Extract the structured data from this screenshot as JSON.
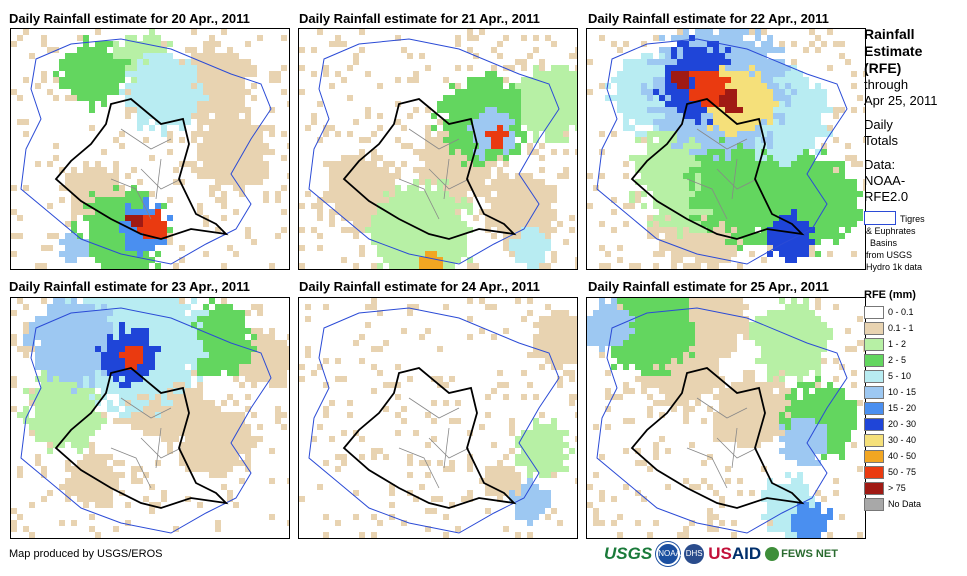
{
  "panels": [
    {
      "title": "Daily Rainfall estimate for 20 Apr., 2011"
    },
    {
      "title": "Daily Rainfall estimate for 21 Apr., 2011"
    },
    {
      "title": "Daily Rainfall estimate for 22 Apr., 2011"
    },
    {
      "title": "Daily Rainfall estimate for 23 Apr., 2011"
    },
    {
      "title": "Daily Rainfall estimate for 24 Apr., 2011"
    },
    {
      "title": "Daily Rainfall estimate for 25 Apr., 2011"
    }
  ],
  "side": {
    "title_lines": [
      "Rainfall",
      "Estimate",
      "(RFE)"
    ],
    "sub_lines": [
      "through",
      "Apr 25, 2011"
    ],
    "totals_lines": [
      "Daily",
      "Totals"
    ],
    "data_lines": [
      "Data:",
      "NOAA-",
      "RFE2.0"
    ],
    "basin_lines": [
      "Tigres",
      "& Euphrates",
      "Basins",
      "from USGS",
      "Hydro 1k data"
    ]
  },
  "legend": {
    "title": "RFE (mm)",
    "items": [
      {
        "label": "0 - 0.1",
        "color": "#ffffff"
      },
      {
        "label": "0.1 - 1",
        "color": "#e8d3b1"
      },
      {
        "label": "1 - 2",
        "color": "#b7f0a5"
      },
      {
        "label": "2 - 5",
        "color": "#63d65f"
      },
      {
        "label": "5 - 10",
        "color": "#b8ecf2"
      },
      {
        "label": "10 - 15",
        "color": "#9dc8f2"
      },
      {
        "label": "15 - 20",
        "color": "#4a8ff0"
      },
      {
        "label": "20 - 30",
        "color": "#1f45d8"
      },
      {
        "label": "30 - 40",
        "color": "#f5e07a"
      },
      {
        "label": "40 - 50",
        "color": "#f2a622"
      },
      {
        "label": "50 - 75",
        "color": "#ea3a10"
      },
      {
        "label": "> 75",
        "color": "#a01a14"
      },
      {
        "label": "No Data",
        "color": "#a8a8a8"
      }
    ]
  },
  "footer": {
    "credit": "Map produced by USGS/EROS"
  },
  "logos": {
    "usgs": "USGS",
    "noaa": "NOAA",
    "dhs": "DHS",
    "usaid": "US",
    "usaid_b": "AID",
    "fews": "FEWS NET"
  }
}
